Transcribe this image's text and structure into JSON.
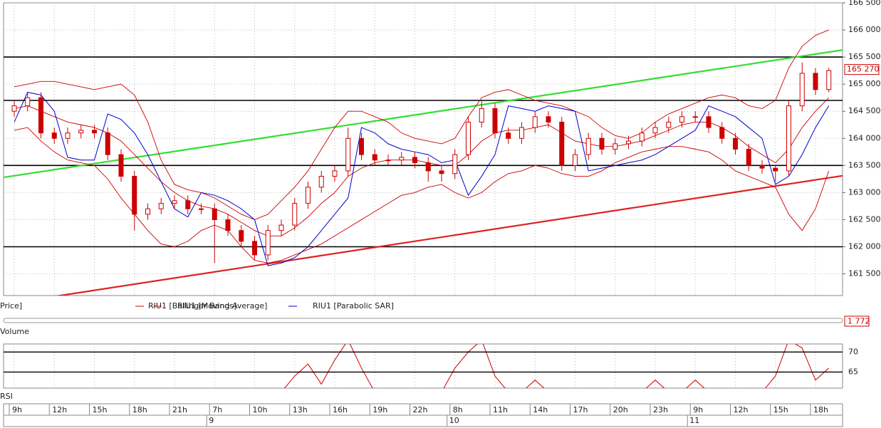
{
  "chart_data": {
    "type": "candlestick",
    "categories": [
      "9h",
      null,
      null,
      "12h",
      null,
      null,
      "15h",
      null,
      null,
      "18h",
      null,
      null,
      "21h",
      null,
      null,
      "7h",
      null,
      null,
      "10h",
      null,
      null,
      "13h",
      null,
      null,
      "16h",
      null,
      null,
      "19h",
      null,
      null,
      "22h",
      null,
      null,
      "8h",
      null,
      null,
      "11h",
      null,
      null,
      "14h",
      null,
      null,
      "17h",
      null,
      null,
      "20h",
      null,
      null,
      "23h",
      null,
      null,
      "9h",
      null,
      null,
      "12h",
      null,
      null,
      "15h",
      null,
      null,
      "18h",
      null
    ],
    "days": [
      null,
      null,
      null,
      null,
      null,
      null,
      null,
      null,
      null,
      null,
      null,
      null,
      null,
      null,
      null,
      "9",
      null,
      null,
      null,
      null,
      null,
      null,
      null,
      null,
      null,
      null,
      null,
      null,
      null,
      null,
      null,
      null,
      null,
      "10",
      null,
      null,
      null,
      null,
      null,
      null,
      null,
      null,
      null,
      null,
      null,
      null,
      null,
      null,
      null,
      null,
      null,
      "11",
      null,
      null,
      null,
      null,
      null,
      null,
      null,
      null,
      null,
      null
    ],
    "open": [
      164.5,
      164.6,
      164.75,
      164.1,
      164.0,
      164.1,
      164.15,
      164.1,
      163.7,
      163.3,
      162.6,
      162.7,
      162.8,
      162.85,
      162.7,
      162.7,
      162.5,
      162.3,
      162.1,
      161.85,
      162.3,
      162.4,
      162.8,
      163.1,
      163.3,
      163.4,
      164.0,
      163.7,
      163.6,
      163.6,
      163.65,
      163.55,
      163.4,
      163.35,
      163.7,
      164.3,
      164.55,
      164.1,
      164.0,
      164.2,
      164.4,
      164.3,
      163.5,
      163.7,
      164.0,
      163.8,
      163.9,
      163.95,
      164.1,
      164.2,
      164.3,
      164.4,
      164.4,
      164.2,
      164.0,
      163.8,
      163.5,
      163.45,
      163.4,
      164.6,
      165.2,
      164.9
    ],
    "high": [
      164.7,
      164.85,
      164.85,
      164.2,
      164.2,
      164.25,
      164.25,
      164.2,
      163.8,
      163.4,
      162.8,
      162.9,
      162.95,
      162.95,
      162.8,
      162.8,
      162.6,
      162.4,
      162.2,
      162.4,
      162.5,
      162.9,
      163.2,
      163.4,
      163.5,
      164.2,
      164.1,
      163.8,
      163.7,
      163.75,
      163.75,
      163.65,
      163.5,
      163.8,
      164.4,
      164.7,
      164.65,
      164.2,
      164.3,
      164.5,
      164.5,
      164.4,
      163.8,
      164.1,
      164.1,
      164.0,
      164.05,
      164.2,
      164.3,
      164.4,
      164.5,
      164.5,
      164.5,
      164.3,
      164.1,
      163.9,
      163.6,
      163.5,
      164.7,
      165.4,
      165.3,
      165.3
    ],
    "low": [
      164.4,
      164.5,
      164.0,
      163.9,
      163.9,
      164.0,
      164.0,
      163.6,
      163.2,
      162.3,
      162.5,
      162.6,
      162.7,
      162.6,
      162.6,
      161.7,
      162.2,
      162.0,
      161.75,
      161.75,
      162.2,
      162.3,
      162.7,
      163.0,
      163.2,
      163.3,
      163.6,
      163.5,
      163.5,
      163.5,
      163.45,
      163.2,
      163.2,
      163.25,
      163.6,
      164.2,
      164.0,
      163.9,
      163.9,
      164.1,
      164.2,
      163.4,
      163.4,
      163.6,
      163.7,
      163.7,
      163.8,
      163.85,
      164.0,
      164.1,
      164.2,
      164.3,
      164.1,
      163.9,
      163.7,
      163.4,
      163.35,
      163.2,
      163.3,
      164.5,
      164.8,
      164.85
    ],
    "close": [
      164.6,
      164.75,
      164.1,
      164.0,
      164.1,
      164.15,
      164.1,
      163.7,
      163.3,
      162.6,
      162.7,
      162.8,
      162.85,
      162.7,
      162.7,
      162.5,
      162.3,
      162.1,
      161.85,
      162.3,
      162.4,
      162.8,
      163.1,
      163.3,
      163.4,
      164.0,
      163.7,
      163.6,
      163.6,
      163.65,
      163.55,
      163.4,
      163.35,
      163.7,
      164.3,
      164.55,
      164.1,
      164.0,
      164.2,
      164.4,
      164.3,
      163.5,
      163.7,
      164.0,
      163.8,
      163.9,
      163.95,
      164.1,
      164.2,
      164.3,
      164.4,
      164.4,
      164.2,
      164.0,
      163.8,
      163.5,
      163.45,
      163.4,
      164.6,
      165.2,
      164.9,
      165.25
    ],
    "color": "#cc0000",
    "ylim": [
      161.1,
      166.5
    ],
    "yticks": [
      {
        "value": 161.5,
        "label": "161 500"
      },
      {
        "value": 162.0,
        "label": "162 000"
      },
      {
        "value": 162.5,
        "label": "162 500"
      },
      {
        "value": 163.0,
        "label": "163 000"
      },
      {
        "value": 163.5,
        "label": "163 500"
      },
      {
        "value": 164.0,
        "label": "164 000"
      },
      {
        "value": 164.5,
        "label": "164 500"
      },
      {
        "value": 165.0,
        "label": "165 000"
      },
      {
        "value": 165.5,
        "label": "165 500"
      },
      {
        "value": 166.0,
        "label": "166 000"
      },
      {
        "value": 166.5,
        "label": "166 500"
      }
    ],
    "grid": true,
    "last_price": {
      "value": 165.27,
      "label": "165 270"
    },
    "hlines": [
      165.5,
      164.7,
      163.5,
      162.0
    ],
    "trendlines": [
      {
        "color": "#33dd33",
        "values": [
          163.28,
          165.63
        ]
      },
      {
        "color": "#dd2222",
        "values": [
          160.94,
          163.31
        ]
      }
    ],
    "price_label": "Price]",
    "series": [
      {
        "name": "RIU1 [Bollinger Bands]",
        "color": "#cc0000",
        "upper": [
          164.95,
          165.0,
          165.05,
          165.05,
          165.0,
          164.95,
          164.9,
          164.95,
          165.0,
          164.8,
          164.3,
          163.6,
          163.15,
          163.05,
          163.0,
          162.9,
          162.75,
          162.6,
          162.5,
          162.6,
          162.85,
          163.1,
          163.4,
          163.8,
          164.2,
          164.5,
          164.5,
          164.4,
          164.3,
          164.1,
          164.0,
          163.95,
          163.9,
          164.0,
          164.4,
          164.75,
          164.85,
          164.9,
          164.8,
          164.7,
          164.65,
          164.6,
          164.5,
          164.4,
          164.2,
          164.05,
          164.0,
          164.1,
          164.3,
          164.45,
          164.55,
          164.65,
          164.75,
          164.8,
          164.75,
          164.6,
          164.55,
          164.7,
          165.3,
          165.7,
          165.9,
          166.0
        ],
        "lower": [
          164.15,
          164.2,
          163.95,
          163.75,
          163.6,
          163.55,
          163.5,
          163.25,
          162.9,
          162.6,
          162.3,
          162.05,
          162.0,
          162.1,
          162.3,
          162.4,
          162.3,
          162.0,
          161.75,
          161.7,
          161.75,
          161.85,
          161.95,
          162.05,
          162.2,
          162.35,
          162.5,
          162.65,
          162.8,
          162.95,
          163.0,
          163.1,
          163.15,
          163.0,
          162.9,
          163.0,
          163.2,
          163.35,
          163.4,
          163.5,
          163.45,
          163.35,
          163.3,
          163.3,
          163.4,
          163.55,
          163.65,
          163.75,
          163.8,
          163.85,
          163.85,
          163.8,
          163.75,
          163.6,
          163.4,
          163.3,
          163.2,
          163.1,
          162.6,
          162.3,
          162.7,
          163.4
        ]
      },
      {
        "name": "RIU1 [Moving Average]",
        "color": "#cc0000",
        "values": [
          164.55,
          164.6,
          164.5,
          164.4,
          164.3,
          164.25,
          164.2,
          164.1,
          163.95,
          163.7,
          163.45,
          163.2,
          163.0,
          162.85,
          162.75,
          162.7,
          162.6,
          162.45,
          162.3,
          162.2,
          162.2,
          162.35,
          162.55,
          162.8,
          163.0,
          163.3,
          163.45,
          163.55,
          163.6,
          163.6,
          163.6,
          163.55,
          163.5,
          163.5,
          163.7,
          163.95,
          164.1,
          164.15,
          164.15,
          164.2,
          164.25,
          164.1,
          163.95,
          163.9,
          163.85,
          163.85,
          163.9,
          163.95,
          164.05,
          164.15,
          164.25,
          164.3,
          164.3,
          164.2,
          164.05,
          163.85,
          163.7,
          163.55,
          163.8,
          164.2,
          164.5,
          164.75
        ]
      },
      {
        "name": "RIU1 [Parabolic SAR]",
        "color": "#0000cc",
        "values": [
          164.3,
          164.85,
          164.8,
          164.5,
          163.65,
          163.6,
          163.6,
          164.45,
          164.35,
          164.1,
          163.7,
          163.2,
          162.7,
          162.55,
          163.0,
          162.95,
          162.85,
          162.7,
          162.5,
          161.65,
          161.7,
          161.8,
          162.0,
          162.3,
          162.6,
          162.9,
          164.2,
          164.1,
          163.9,
          163.8,
          163.75,
          163.7,
          163.55,
          163.6,
          162.95,
          163.3,
          163.7,
          164.6,
          164.55,
          164.5,
          164.6,
          164.55,
          164.5,
          163.4,
          163.45,
          163.5,
          163.55,
          163.6,
          163.7,
          163.85,
          164.0,
          164.15,
          164.6,
          164.5,
          164.4,
          164.2,
          164.0,
          163.15,
          163.3,
          163.7,
          164.2,
          164.6
        ]
      }
    ]
  },
  "volume_panel": {
    "title": "Volume",
    "last_label": "1 772"
  },
  "rsi_panel": {
    "title": "RSI",
    "color": "#cc0000",
    "ylim": [
      61,
      72
    ],
    "yticks": [
      65,
      70
    ],
    "values": [
      null,
      null,
      null,
      null,
      null,
      null,
      null,
      null,
      null,
      null,
      null,
      null,
      null,
      null,
      null,
      null,
      null,
      null,
      null,
      null,
      60,
      64,
      67,
      62,
      68,
      73,
      66,
      60,
      null,
      null,
      null,
      null,
      60,
      66,
      70,
      73,
      64,
      60,
      60,
      63,
      60,
      null,
      null,
      null,
      null,
      null,
      null,
      60,
      63,
      60,
      60,
      63,
      60,
      null,
      null,
      null,
      60,
      64,
      73,
      71,
      63,
      66
    ]
  }
}
